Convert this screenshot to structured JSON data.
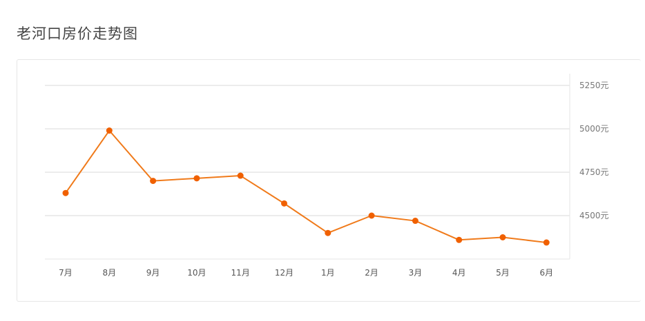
{
  "title": "老河口房价走势图",
  "colors": {
    "line": "#f07a1a",
    "point": "#f06000",
    "grid": "#d9d9d9",
    "axis": "#e6e6e6"
  },
  "chart_data": {
    "type": "line",
    "title": "老河口房价走势图",
    "xlabel": "",
    "ylabel": "",
    "categories": [
      "7月",
      "8月",
      "9月",
      "10月",
      "11月",
      "12月",
      "1月",
      "2月",
      "3月",
      "4月",
      "5月",
      "6月"
    ],
    "series": [
      {
        "values": [
          4630,
          4990,
          4700,
          4715,
          4730,
          4570,
          4400,
          4500,
          4470,
          4360,
          4375,
          4345
        ]
      }
    ],
    "y_ticks": [
      4500,
      4750,
      5000,
      5250
    ],
    "y_tick_labels": [
      "4500元",
      "4750元",
      "5000元",
      "5250元"
    ],
    "ylim": [
      4250,
      5250
    ],
    "grid": true,
    "y_axis_position": "right"
  }
}
